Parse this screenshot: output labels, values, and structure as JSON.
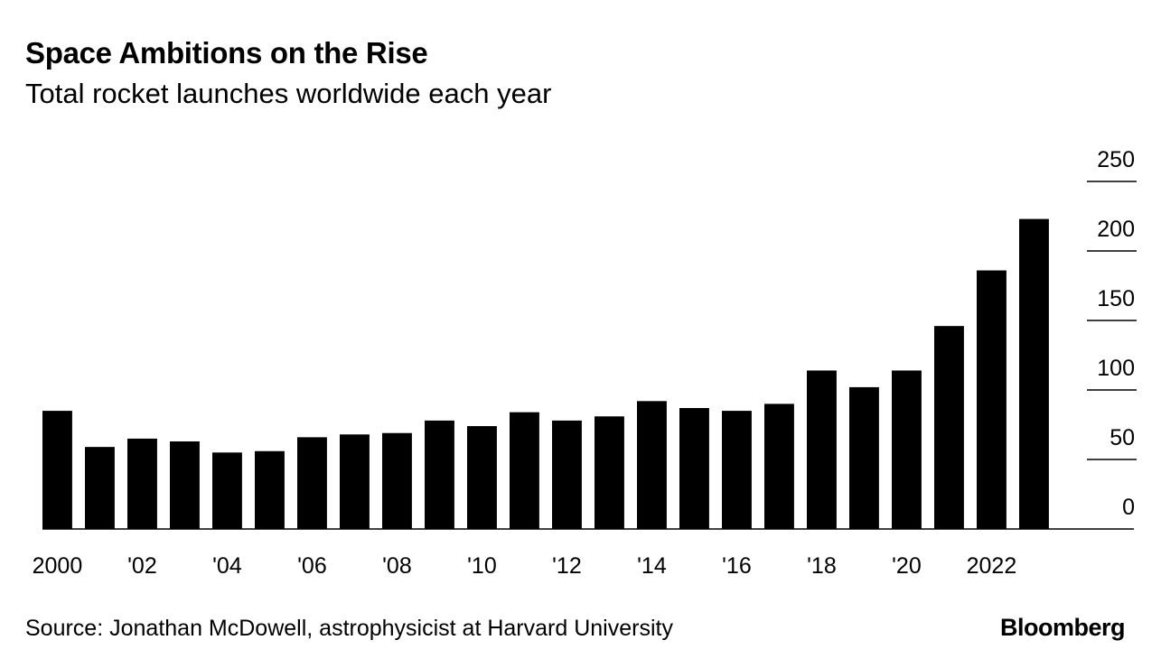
{
  "chart_data": {
    "type": "bar",
    "title": "Space Ambitions on the Rise",
    "subtitle": "Total rocket launches worldwide each year",
    "xlabel": "",
    "ylabel": "",
    "categories": [
      2000,
      2001,
      2002,
      2003,
      2004,
      2005,
      2006,
      2007,
      2008,
      2009,
      2010,
      2011,
      2012,
      2013,
      2014,
      2015,
      2016,
      2017,
      2018,
      2019,
      2020,
      2021,
      2022,
      2023
    ],
    "values": [
      85,
      59,
      65,
      63,
      55,
      56,
      66,
      68,
      69,
      78,
      74,
      84,
      78,
      81,
      92,
      87,
      85,
      90,
      114,
      102,
      114,
      146,
      186,
      223
    ],
    "ylim": [
      0,
      250
    ],
    "yticks": [
      "0",
      "50",
      "100",
      "150",
      "200",
      "250"
    ],
    "xtick_labels": [
      {
        "year": 2000,
        "label": "2000"
      },
      {
        "year": 2002,
        "label": "'02"
      },
      {
        "year": 2004,
        "label": "'04"
      },
      {
        "year": 2006,
        "label": "'06"
      },
      {
        "year": 2008,
        "label": "'08"
      },
      {
        "year": 2010,
        "label": "'10"
      },
      {
        "year": 2012,
        "label": "'12"
      },
      {
        "year": 2014,
        "label": "'14"
      },
      {
        "year": 2016,
        "label": "'16"
      },
      {
        "year": 2018,
        "label": "'18"
      },
      {
        "year": 2020,
        "label": "'20"
      },
      {
        "year": 2022,
        "label": "2022"
      }
    ],
    "bar_color": "#000000",
    "grid": true,
    "legend": "none"
  },
  "footer": {
    "source": "Source: Jonathan McDowell, astrophysicist at Harvard University",
    "brand": "Bloomberg"
  }
}
